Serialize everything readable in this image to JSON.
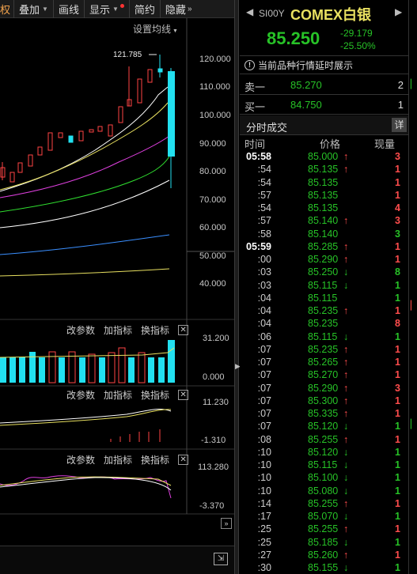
{
  "toolbar": {
    "partial_label": "权",
    "items": [
      {
        "label": "叠加",
        "caret": "▼"
      },
      {
        "label": "画线"
      },
      {
        "label": "显示",
        "caret": "▼"
      },
      {
        "label": "简约"
      },
      {
        "label": "隐藏",
        "caret": "»"
      }
    ]
  },
  "chart": {
    "ma_settings_label": "设置均线",
    "ma_settings_caret": "▼",
    "high_marker": "121.785",
    "price_axis": [
      "120.000",
      "110.000",
      "100.000",
      "90.000",
      "80.000",
      "70.000",
      "60.000",
      "50.000",
      "40.000"
    ],
    "volume_axis": [
      "31.200",
      "0.000"
    ],
    "macd_axis": [
      "11.230",
      "-1.310"
    ],
    "ind3_axis": [
      "113.280",
      "-3.370"
    ],
    "sub_controls": {
      "modify": "改参数",
      "add": "加指标",
      "switch": "换指标",
      "close": "✕"
    },
    "colors": {
      "up": "#ff4444",
      "down": "#22e0f0",
      "ma5": "#ffffff",
      "ma10": "#e8e060",
      "ma20": "#e040e0",
      "ma60": "#30e030",
      "ma120": "#3a8fff"
    }
  },
  "quote": {
    "symbol_code": "SI00Y",
    "symbol_name": "COMEX白银",
    "nav_left": "◀",
    "nav_right": "▶",
    "last_price": "85.250",
    "change": "-29.179",
    "change_pct": "-25.50%",
    "notice": "当前品种行情延时展示",
    "ask": {
      "label": "卖一",
      "price": "85.270",
      "volume": "2"
    },
    "bid": {
      "label": "买一",
      "price": "84.750",
      "volume": "1"
    },
    "tick_title": "分时成交",
    "detail_label": "详",
    "columns": {
      "time": "时间",
      "price": "价格",
      "volume": "现量"
    }
  },
  "ticks": [
    {
      "time": "05:58",
      "price": "85.000",
      "dir": "up",
      "vol": "3",
      "volc": "red"
    },
    {
      "time": ":54",
      "price": "85.135",
      "dir": "up",
      "vol": "1",
      "volc": "red"
    },
    {
      "time": ":54",
      "price": "85.135",
      "dir": "",
      "vol": "1",
      "volc": "red"
    },
    {
      "time": ":57",
      "price": "85.135",
      "dir": "",
      "vol": "1",
      "volc": "red"
    },
    {
      "time": ":54",
      "price": "85.135",
      "dir": "",
      "vol": "4",
      "volc": "red"
    },
    {
      "time": ":57",
      "price": "85.140",
      "dir": "up",
      "vol": "3",
      "volc": "red"
    },
    {
      "time": ":58",
      "price": "85.140",
      "dir": "",
      "vol": "3",
      "volc": "green"
    },
    {
      "time": "05:59",
      "price": "85.285",
      "dir": "up",
      "vol": "1",
      "volc": "red"
    },
    {
      "time": ":00",
      "price": "85.290",
      "dir": "up",
      "vol": "1",
      "volc": "red"
    },
    {
      "time": ":03",
      "price": "85.250",
      "dir": "down",
      "vol": "8",
      "volc": "green"
    },
    {
      "time": ":03",
      "price": "85.115",
      "dir": "down",
      "vol": "1",
      "volc": "green"
    },
    {
      "time": ":04",
      "price": "85.115",
      "dir": "",
      "vol": "1",
      "volc": "green"
    },
    {
      "time": ":04",
      "price": "85.235",
      "dir": "up",
      "vol": "1",
      "volc": "red"
    },
    {
      "time": ":04",
      "price": "85.235",
      "dir": "",
      "vol": "8",
      "volc": "red"
    },
    {
      "time": ":06",
      "price": "85.115",
      "dir": "down",
      "vol": "1",
      "volc": "green"
    },
    {
      "time": ":07",
      "price": "85.235",
      "dir": "up",
      "vol": "1",
      "volc": "red"
    },
    {
      "time": ":07",
      "price": "85.265",
      "dir": "up",
      "vol": "1",
      "volc": "red"
    },
    {
      "time": ":07",
      "price": "85.270",
      "dir": "up",
      "vol": "1",
      "volc": "red"
    },
    {
      "time": ":07",
      "price": "85.290",
      "dir": "up",
      "vol": "3",
      "volc": "red"
    },
    {
      "time": ":07",
      "price": "85.300",
      "dir": "up",
      "vol": "1",
      "volc": "red"
    },
    {
      "time": ":07",
      "price": "85.335",
      "dir": "up",
      "vol": "1",
      "volc": "red"
    },
    {
      "time": ":07",
      "price": "85.120",
      "dir": "down",
      "vol": "1",
      "volc": "green"
    },
    {
      "time": ":08",
      "price": "85.255",
      "dir": "up",
      "vol": "1",
      "volc": "red"
    },
    {
      "time": ":10",
      "price": "85.120",
      "dir": "down",
      "vol": "1",
      "volc": "green"
    },
    {
      "time": ":10",
      "price": "85.115",
      "dir": "down",
      "vol": "1",
      "volc": "green"
    },
    {
      "time": ":10",
      "price": "85.100",
      "dir": "down",
      "vol": "1",
      "volc": "green"
    },
    {
      "time": ":10",
      "price": "85.080",
      "dir": "down",
      "vol": "1",
      "volc": "green"
    },
    {
      "time": ":14",
      "price": "85.255",
      "dir": "up",
      "vol": "1",
      "volc": "red"
    },
    {
      "time": ":17",
      "price": "85.070",
      "dir": "down",
      "vol": "1",
      "volc": "green"
    },
    {
      "time": ":25",
      "price": "85.255",
      "dir": "up",
      "vol": "1",
      "volc": "red"
    },
    {
      "time": ":25",
      "price": "85.185",
      "dir": "down",
      "vol": "1",
      "volc": "green"
    },
    {
      "time": ":27",
      "price": "85.260",
      "dir": "up",
      "vol": "1",
      "volc": "red"
    },
    {
      "time": ":30",
      "price": "85.155",
      "dir": "down",
      "vol": "1",
      "volc": "green"
    }
  ]
}
